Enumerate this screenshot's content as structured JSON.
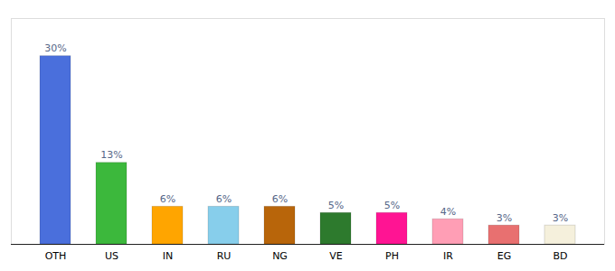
{
  "chart_data": {
    "type": "bar",
    "categories": [
      "OTH",
      "US",
      "IN",
      "RU",
      "NG",
      "VE",
      "PH",
      "IR",
      "EG",
      "BD"
    ],
    "values": [
      30,
      13,
      6,
      6,
      6,
      5,
      5,
      4,
      3,
      3
    ],
    "value_labels": [
      "30%",
      "13%",
      "6%",
      "6%",
      "6%",
      "5%",
      "5%",
      "4%",
      "3%",
      "3%"
    ],
    "colors": [
      "#4a6fdc",
      "#3cb83c",
      "#ffa500",
      "#87ceeb",
      "#b8650a",
      "#2d7a2d",
      "#ff1493",
      "#ff9eb5",
      "#e87070",
      "#f5f0dc"
    ],
    "ylim": [
      0,
      36
    ],
    "data_labels": true,
    "tick_labels": "x"
  }
}
